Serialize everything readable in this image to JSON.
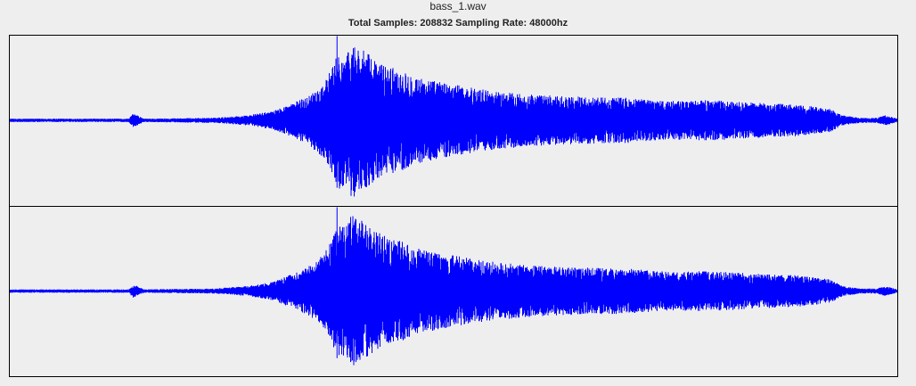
{
  "file_name": "bass_1.wav",
  "info_line": "Total Samples: 208832  Sampling Rate: 48000hz",
  "colors": {
    "waveform": "#0000ff",
    "background": "#eeeeee",
    "border": "#000000"
  },
  "chart_data": {
    "type": "area",
    "title": "bass_1.wav",
    "subtitle": "Total Samples: 208832  Sampling Rate: 48000hz",
    "total_samples": 208832,
    "sampling_rate": 48000,
    "channels": 2,
    "x_unit": "sample",
    "xlim": [
      0,
      208832
    ],
    "ylim": [
      -1,
      1
    ],
    "grid": false,
    "envelope": {
      "x": [
        0,
        28000,
        29000,
        30000,
        31500,
        48000,
        56000,
        62000,
        70000,
        74000,
        76000,
        77500,
        79000,
        80500,
        82000,
        84000,
        86000,
        88000,
        92000,
        97000,
        105000,
        115000,
        125000,
        135000,
        145000,
        155000,
        165000,
        175000,
        185000,
        193000,
        196000,
        200000,
        204000,
        206000,
        207500,
        208832
      ],
      "peak": [
        0.02,
        0.02,
        0.08,
        0.06,
        0.02,
        0.03,
        0.06,
        0.11,
        0.28,
        0.45,
        0.65,
        0.82,
        0.75,
        0.92,
        0.88,
        0.8,
        0.72,
        0.66,
        0.6,
        0.5,
        0.42,
        0.34,
        0.3,
        0.28,
        0.27,
        0.23,
        0.24,
        0.21,
        0.19,
        0.14,
        0.06,
        0.03,
        0.03,
        0.06,
        0.04,
        0.02
      ]
    },
    "transient": {
      "x": 77000,
      "peak": 1.0
    },
    "series": [
      {
        "name": "",
        "channel": 1
      },
      {
        "name": "",
        "channel": 2
      }
    ]
  }
}
